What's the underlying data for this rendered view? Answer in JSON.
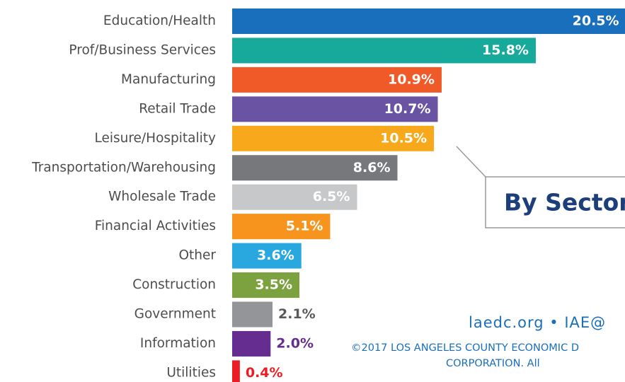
{
  "chart_data": {
    "type": "bar",
    "orientation": "horizontal",
    "categories": [
      "Education/Health",
      "Prof/Business Services",
      "Manufacturing",
      "Retail Trade",
      "Leisure/Hospitality",
      "Transportation/Warehousing",
      "Wholesale Trade",
      "Financial Activities",
      "Other",
      "Construction",
      "Government",
      "Information",
      "Utilities"
    ],
    "values": [
      20.5,
      15.8,
      10.9,
      10.7,
      10.5,
      8.6,
      6.5,
      5.1,
      3.6,
      3.5,
      2.1,
      2.0,
      0.4
    ],
    "value_labels": [
      "20.5%",
      "15.8%",
      "10.9%",
      "10.7%",
      "10.5%",
      "8.6%",
      "6.5%",
      "5.1%",
      "3.6%",
      "3.5%",
      "2.1%",
      "2.0%",
      "0.4%"
    ],
    "colors": [
      "#1a6fbd",
      "#17a99a",
      "#f05a28",
      "#6a53a3",
      "#f7a81b",
      "#77787b",
      "#c7c8ca",
      "#f7941d",
      "#29a8e0",
      "#7ba23f",
      "#939598",
      "#662d91",
      "#ed1c24"
    ],
    "annotation": "By Sector",
    "footer": [
      "laedc.org • IAE@",
      "©2017 LOS ANGELES COUNTY ECONOMIC D",
      "CORPORATION.  All"
    ]
  }
}
